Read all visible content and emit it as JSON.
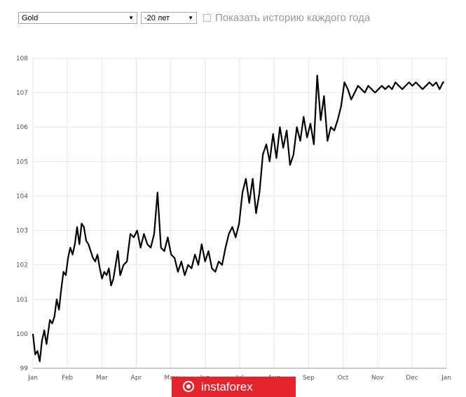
{
  "controls": {
    "asset": "Gold",
    "period": "-20 лет",
    "history_label": "Показать историю каждого года",
    "history_checked": false
  },
  "watermark": {
    "text": "instaforex"
  },
  "chart_data": {
    "type": "line",
    "title": "",
    "xlabel": "",
    "ylabel": "",
    "x_ticks": [
      "Jan",
      "Feb",
      "Mar",
      "Apr",
      "May",
      "Jun",
      "Jul",
      "Aug",
      "Sep",
      "Oct",
      "Nov",
      "Dec",
      "Jan"
    ],
    "y_ticks": [
      99,
      100,
      101,
      102,
      103,
      104,
      105,
      106,
      107,
      108
    ],
    "xlim": [
      0,
      365
    ],
    "ylim": [
      99,
      108
    ],
    "grid": true,
    "line_color": "#000000",
    "series": [
      {
        "x": [
          0,
          2,
          4,
          6,
          8,
          10,
          12,
          15,
          17,
          19,
          21,
          23,
          25,
          27,
          29,
          31,
          33,
          35,
          37,
          39,
          41,
          43,
          45,
          47,
          49,
          51,
          53,
          55,
          57,
          59,
          61,
          63,
          65,
          67,
          69,
          71,
          73,
          75,
          77,
          80,
          83,
          86,
          89,
          92,
          95,
          98,
          101,
          104,
          107,
          110,
          113,
          116,
          119,
          122,
          125,
          128,
          131,
          134,
          137,
          140,
          143,
          146,
          149,
          152,
          155,
          158,
          161,
          164,
          167,
          170,
          173,
          176,
          179,
          182,
          185,
          188,
          191,
          194,
          197,
          200,
          203,
          206,
          209,
          212,
          215,
          218,
          221,
          224,
          227,
          230,
          233,
          236,
          239,
          242,
          245,
          248,
          251,
          254,
          257,
          260,
          263,
          266,
          269,
          272,
          275,
          278,
          281,
          284,
          287,
          290,
          293,
          296,
          299,
          302,
          305,
          308,
          311,
          314,
          317,
          320,
          323,
          326,
          329,
          332,
          335,
          338,
          341,
          344,
          347,
          350,
          353,
          356,
          359,
          362,
          363
        ],
        "y": [
          100.0,
          99.4,
          99.5,
          99.2,
          99.8,
          100.1,
          99.7,
          100.4,
          100.3,
          100.5,
          101.0,
          100.7,
          101.3,
          101.8,
          101.7,
          102.2,
          102.5,
          102.3,
          102.6,
          103.1,
          102.6,
          103.2,
          103.1,
          102.7,
          102.6,
          102.4,
          102.2,
          102.1,
          102.3,
          101.9,
          101.6,
          101.8,
          101.7,
          101.9,
          101.4,
          101.6,
          102.0,
          102.4,
          101.7,
          102.0,
          102.1,
          102.9,
          102.8,
          103.0,
          102.5,
          102.9,
          102.6,
          102.5,
          102.9,
          104.1,
          102.5,
          102.4,
          102.8,
          102.3,
          102.2,
          101.8,
          102.1,
          101.7,
          102.0,
          101.9,
          102.3,
          102.0,
          102.6,
          102.1,
          102.4,
          101.9,
          101.8,
          102.1,
          102.0,
          102.5,
          102.9,
          103.1,
          102.8,
          103.2,
          104.1,
          104.5,
          103.8,
          104.5,
          103.5,
          104.1,
          105.2,
          105.5,
          105.0,
          105.8,
          105.1,
          106.0,
          105.4,
          105.9,
          104.9,
          105.2,
          106.0,
          105.6,
          106.3,
          105.7,
          106.1,
          105.5,
          107.5,
          106.2,
          106.9,
          105.6,
          106.0,
          105.9,
          106.2,
          106.6,
          107.3,
          107.1,
          106.8,
          107.0,
          107.2,
          107.1,
          107.0,
          107.2,
          107.1,
          107.0,
          107.1,
          107.2,
          107.1,
          107.2,
          107.1,
          107.3,
          107.2,
          107.1,
          107.2,
          107.3,
          107.2,
          107.3,
          107.2,
          107.1,
          107.2,
          107.3,
          107.2,
          107.3,
          107.1,
          107.3,
          107.3
        ]
      }
    ]
  }
}
